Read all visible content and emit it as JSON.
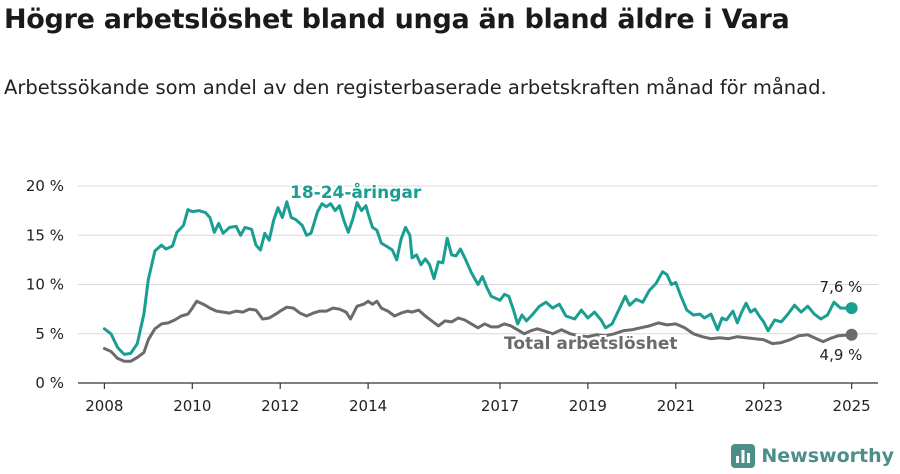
{
  "header": {
    "title": "Högre arbetslöshet bland unga än bland äldre i Vara",
    "subtitle": "Arbetssökande som andel av den registerbaserade arbetskraften månad för månad."
  },
  "brand": {
    "name": "Newsworthy",
    "icon": "bar-chart-logo-icon",
    "color": "#4c8f8a"
  },
  "chart_data": {
    "type": "line",
    "title": "Högre arbetslöshet bland unga än bland äldre i Vara",
    "subtitle": "Arbetssökande som andel av den registerbaserade arbetskraften månad för månad.",
    "xlabel": "",
    "ylabel": "",
    "x_ticks": [
      "2008",
      "2010",
      "2012",
      "2014",
      "2017",
      "2019",
      "2021",
      "2023",
      "2025"
    ],
    "y_ticks": [
      "0 %",
      "5 %",
      "10 %",
      "15 %",
      "20 %"
    ],
    "ylim": [
      0,
      20
    ],
    "xlim": [
      2007.4,
      2025.6
    ],
    "grid": true,
    "series": [
      {
        "name": "18-24-åringar",
        "color": "#1a9e92",
        "end_label": "7,6 %",
        "points": [
          [
            2008.0,
            5.5
          ],
          [
            2008.15,
            5.0
          ],
          [
            2008.3,
            3.6
          ],
          [
            2008.45,
            2.9
          ],
          [
            2008.6,
            3.0
          ],
          [
            2008.75,
            4.0
          ],
          [
            2008.9,
            7.0
          ],
          [
            2009.0,
            10.5
          ],
          [
            2009.15,
            13.4
          ],
          [
            2009.3,
            14.0
          ],
          [
            2009.4,
            13.6
          ],
          [
            2009.55,
            13.9
          ],
          [
            2009.65,
            15.3
          ],
          [
            2009.8,
            16.0
          ],
          [
            2009.9,
            17.6
          ],
          [
            2010.0,
            17.4
          ],
          [
            2010.15,
            17.5
          ],
          [
            2010.3,
            17.3
          ],
          [
            2010.4,
            16.8
          ],
          [
            2010.5,
            15.3
          ],
          [
            2010.6,
            16.2
          ],
          [
            2010.7,
            15.2
          ],
          [
            2010.85,
            15.8
          ],
          [
            2011.0,
            15.9
          ],
          [
            2011.1,
            15.0
          ],
          [
            2011.2,
            15.8
          ],
          [
            2011.35,
            15.6
          ],
          [
            2011.45,
            14.0
          ],
          [
            2011.55,
            13.5
          ],
          [
            2011.65,
            15.2
          ],
          [
            2011.75,
            14.5
          ],
          [
            2011.85,
            16.5
          ],
          [
            2011.95,
            17.8
          ],
          [
            2012.05,
            16.8
          ],
          [
            2012.15,
            18.4
          ],
          [
            2012.25,
            16.8
          ],
          [
            2012.35,
            16.6
          ],
          [
            2012.5,
            16.0
          ],
          [
            2012.6,
            15.0
          ],
          [
            2012.7,
            15.2
          ],
          [
            2012.85,
            17.4
          ],
          [
            2012.95,
            18.2
          ],
          [
            2013.05,
            17.9
          ],
          [
            2013.15,
            18.2
          ],
          [
            2013.25,
            17.5
          ],
          [
            2013.35,
            18.0
          ],
          [
            2013.45,
            16.5
          ],
          [
            2013.55,
            15.3
          ],
          [
            2013.65,
            16.6
          ],
          [
            2013.75,
            18.3
          ],
          [
            2013.85,
            17.5
          ],
          [
            2013.95,
            18.0
          ],
          [
            2014.0,
            17.2
          ],
          [
            2014.1,
            15.8
          ],
          [
            2014.2,
            15.5
          ],
          [
            2014.3,
            14.2
          ],
          [
            2014.45,
            13.8
          ],
          [
            2014.55,
            13.5
          ],
          [
            2014.65,
            12.5
          ],
          [
            2014.75,
            14.6
          ],
          [
            2014.85,
            15.8
          ],
          [
            2014.95,
            15.0
          ],
          [
            2015.0,
            12.7
          ],
          [
            2015.1,
            13.0
          ],
          [
            2015.2,
            12.0
          ],
          [
            2015.3,
            12.6
          ],
          [
            2015.4,
            12.0
          ],
          [
            2015.5,
            10.6
          ],
          [
            2015.6,
            12.3
          ],
          [
            2015.7,
            12.2
          ],
          [
            2015.8,
            14.7
          ],
          [
            2015.9,
            13.0
          ],
          [
            2016.0,
            12.9
          ],
          [
            2016.1,
            13.6
          ],
          [
            2016.2,
            12.7
          ],
          [
            2016.35,
            11.2
          ],
          [
            2016.5,
            10.0
          ],
          [
            2016.6,
            10.8
          ],
          [
            2016.7,
            9.7
          ],
          [
            2016.8,
            8.8
          ],
          [
            2016.9,
            8.6
          ],
          [
            2017.0,
            8.4
          ],
          [
            2017.1,
            9.0
          ],
          [
            2017.2,
            8.8
          ],
          [
            2017.3,
            7.5
          ],
          [
            2017.4,
            6.0
          ],
          [
            2017.5,
            6.9
          ],
          [
            2017.6,
            6.3
          ],
          [
            2017.75,
            7.0
          ],
          [
            2017.9,
            7.8
          ],
          [
            2018.05,
            8.2
          ],
          [
            2018.2,
            7.6
          ],
          [
            2018.35,
            8.0
          ],
          [
            2018.5,
            6.8
          ],
          [
            2018.7,
            6.5
          ],
          [
            2018.85,
            7.4
          ],
          [
            2019.0,
            6.6
          ],
          [
            2019.15,
            7.2
          ],
          [
            2019.3,
            6.4
          ],
          [
            2019.4,
            5.6
          ],
          [
            2019.55,
            6.0
          ],
          [
            2019.7,
            7.4
          ],
          [
            2019.85,
            8.8
          ],
          [
            2019.95,
            7.9
          ],
          [
            2020.1,
            8.5
          ],
          [
            2020.25,
            8.2
          ],
          [
            2020.4,
            9.4
          ],
          [
            2020.55,
            10.1
          ],
          [
            2020.7,
            11.3
          ],
          [
            2020.8,
            11.0
          ],
          [
            2020.9,
            10.0
          ],
          [
            2021.0,
            10.2
          ],
          [
            2021.1,
            9.0
          ],
          [
            2021.25,
            7.4
          ],
          [
            2021.4,
            6.9
          ],
          [
            2021.55,
            7.0
          ],
          [
            2021.65,
            6.6
          ],
          [
            2021.8,
            7.0
          ],
          [
            2021.95,
            5.4
          ],
          [
            2022.05,
            6.6
          ],
          [
            2022.15,
            6.4
          ],
          [
            2022.3,
            7.3
          ],
          [
            2022.4,
            6.1
          ],
          [
            2022.5,
            7.2
          ],
          [
            2022.6,
            8.1
          ],
          [
            2022.7,
            7.2
          ],
          [
            2022.8,
            7.5
          ],
          [
            2022.9,
            6.8
          ],
          [
            2023.0,
            6.2
          ],
          [
            2023.1,
            5.3
          ],
          [
            2023.25,
            6.4
          ],
          [
            2023.4,
            6.2
          ],
          [
            2023.55,
            7.0
          ],
          [
            2023.7,
            7.9
          ],
          [
            2023.85,
            7.2
          ],
          [
            2024.0,
            7.8
          ],
          [
            2024.15,
            7.0
          ],
          [
            2024.3,
            6.5
          ],
          [
            2024.45,
            6.9
          ],
          [
            2024.6,
            8.2
          ],
          [
            2024.75,
            7.6
          ],
          [
            2025.0,
            7.6
          ]
        ]
      },
      {
        "name": "Total arbetslöshet",
        "color": "#6b6b6e",
        "end_label": "4,9 %",
        "points": [
          [
            2008.0,
            3.5
          ],
          [
            2008.15,
            3.2
          ],
          [
            2008.3,
            2.5
          ],
          [
            2008.45,
            2.2
          ],
          [
            2008.6,
            2.2
          ],
          [
            2008.75,
            2.6
          ],
          [
            2008.9,
            3.1
          ],
          [
            2009.0,
            4.4
          ],
          [
            2009.15,
            5.5
          ],
          [
            2009.3,
            6.0
          ],
          [
            2009.45,
            6.1
          ],
          [
            2009.6,
            6.4
          ],
          [
            2009.75,
            6.8
          ],
          [
            2009.9,
            7.0
          ],
          [
            2010.0,
            7.6
          ],
          [
            2010.1,
            8.3
          ],
          [
            2010.25,
            8.0
          ],
          [
            2010.4,
            7.6
          ],
          [
            2010.55,
            7.3
          ],
          [
            2010.7,
            7.2
          ],
          [
            2010.85,
            7.1
          ],
          [
            2011.0,
            7.3
          ],
          [
            2011.15,
            7.2
          ],
          [
            2011.3,
            7.5
          ],
          [
            2011.45,
            7.4
          ],
          [
            2011.6,
            6.5
          ],
          [
            2011.75,
            6.6
          ],
          [
            2011.9,
            7.0
          ],
          [
            2012.0,
            7.3
          ],
          [
            2012.15,
            7.7
          ],
          [
            2012.3,
            7.6
          ],
          [
            2012.45,
            7.1
          ],
          [
            2012.6,
            6.8
          ],
          [
            2012.75,
            7.1
          ],
          [
            2012.9,
            7.3
          ],
          [
            2013.05,
            7.3
          ],
          [
            2013.2,
            7.6
          ],
          [
            2013.35,
            7.5
          ],
          [
            2013.5,
            7.2
          ],
          [
            2013.6,
            6.5
          ],
          [
            2013.75,
            7.8
          ],
          [
            2013.9,
            8.0
          ],
          [
            2014.0,
            8.3
          ],
          [
            2014.1,
            8.0
          ],
          [
            2014.2,
            8.3
          ],
          [
            2014.3,
            7.6
          ],
          [
            2014.45,
            7.3
          ],
          [
            2014.6,
            6.8
          ],
          [
            2014.75,
            7.1
          ],
          [
            2014.9,
            7.3
          ],
          [
            2015.0,
            7.2
          ],
          [
            2015.15,
            7.4
          ],
          [
            2015.3,
            6.8
          ],
          [
            2015.45,
            6.3
          ],
          [
            2015.6,
            5.8
          ],
          [
            2015.75,
            6.3
          ],
          [
            2015.9,
            6.2
          ],
          [
            2016.05,
            6.6
          ],
          [
            2016.2,
            6.4
          ],
          [
            2016.35,
            6.0
          ],
          [
            2016.5,
            5.6
          ],
          [
            2016.65,
            6.0
          ],
          [
            2016.8,
            5.7
          ],
          [
            2016.95,
            5.7
          ],
          [
            2017.1,
            6.0
          ],
          [
            2017.25,
            5.8
          ],
          [
            2017.4,
            5.4
          ],
          [
            2017.55,
            5.0
          ],
          [
            2017.7,
            5.3
          ],
          [
            2017.85,
            5.5
          ],
          [
            2018.0,
            5.3
          ],
          [
            2018.2,
            5.0
          ],
          [
            2018.4,
            5.4
          ],
          [
            2018.6,
            5.0
          ],
          [
            2018.8,
            4.8
          ],
          [
            2019.0,
            4.7
          ],
          [
            2019.2,
            4.9
          ],
          [
            2019.4,
            4.8
          ],
          [
            2019.6,
            5.0
          ],
          [
            2019.8,
            5.3
          ],
          [
            2020.0,
            5.4
          ],
          [
            2020.2,
            5.6
          ],
          [
            2020.4,
            5.8
          ],
          [
            2020.6,
            6.1
          ],
          [
            2020.8,
            5.9
          ],
          [
            2021.0,
            6.0
          ],
          [
            2021.2,
            5.6
          ],
          [
            2021.4,
            5.0
          ],
          [
            2021.6,
            4.7
          ],
          [
            2021.8,
            4.5
          ],
          [
            2022.0,
            4.6
          ],
          [
            2022.2,
            4.5
          ],
          [
            2022.4,
            4.7
          ],
          [
            2022.6,
            4.6
          ],
          [
            2022.8,
            4.5
          ],
          [
            2023.0,
            4.4
          ],
          [
            2023.2,
            4.0
          ],
          [
            2023.4,
            4.1
          ],
          [
            2023.6,
            4.4
          ],
          [
            2023.8,
            4.8
          ],
          [
            2024.0,
            4.9
          ],
          [
            2024.2,
            4.5
          ],
          [
            2024.35,
            4.2
          ],
          [
            2024.5,
            4.5
          ],
          [
            2024.7,
            4.8
          ],
          [
            2025.0,
            4.9
          ]
        ]
      }
    ]
  }
}
